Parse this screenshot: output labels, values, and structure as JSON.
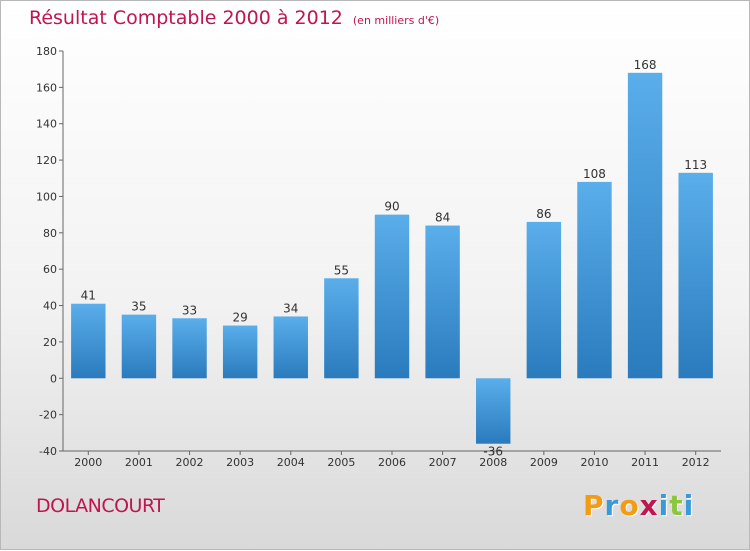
{
  "header": {
    "title": "Résultat Comptable 2000 à 2012",
    "subtitle": "(en milliers d'€)"
  },
  "commune": "DOLANCOURT",
  "logo": {
    "text": "Proxiti",
    "letters": [
      {
        "ch": "P",
        "color": "#f39c12"
      },
      {
        "ch": "r",
        "color": "#3a9ad9"
      },
      {
        "ch": "o",
        "color": "#f39c12"
      },
      {
        "ch": "x",
        "color": "#c0154f"
      },
      {
        "ch": "i",
        "color": "#3a9ad9"
      },
      {
        "ch": "t",
        "color": "#8cc63f"
      },
      {
        "ch": "i",
        "color": "#3a9ad9"
      }
    ]
  },
  "chart_data": {
    "type": "bar",
    "title": "Résultat Comptable 2000 à 2012",
    "xlabel": "",
    "ylabel": "",
    "ylim": [
      -40,
      180
    ],
    "yticks": [
      -40,
      -20,
      0,
      20,
      40,
      60,
      80,
      100,
      120,
      140,
      160,
      180
    ],
    "grid": false,
    "categories": [
      "2000",
      "2001",
      "2002",
      "2003",
      "2004",
      "2005",
      "2006",
      "2007",
      "2008",
      "2009",
      "2010",
      "2011",
      "2012"
    ],
    "values": [
      41,
      35,
      33,
      29,
      34,
      55,
      90,
      84,
      -36,
      86,
      108,
      168,
      113
    ],
    "colors": {
      "bar_light": "#5aaeea",
      "bar_dark": "#2a7bbd"
    }
  }
}
